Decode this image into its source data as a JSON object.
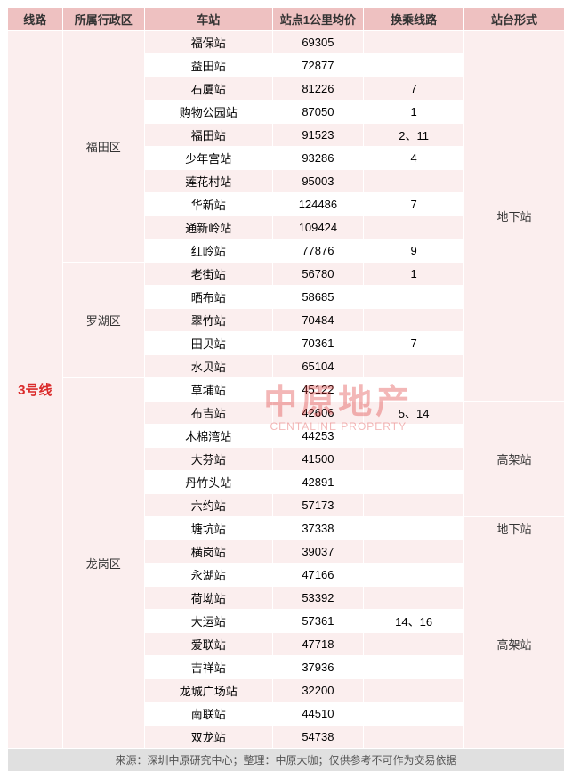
{
  "headers": {
    "line": "线路",
    "district": "所属行政区",
    "station": "车站",
    "price": "站点1公里均价",
    "transfer": "换乘线路",
    "platform": "站台形式"
  },
  "line_label": "3号线",
  "districts": [
    {
      "name": "福田区",
      "rows": 10
    },
    {
      "name": "罗湖区",
      "rows": 5
    },
    {
      "name": "龙岗区",
      "rows": 16
    }
  ],
  "platforms": [
    {
      "name": "地下站",
      "rows": 16
    },
    {
      "name": "高架站",
      "rows": 5
    },
    {
      "name": "地下站",
      "rows": 1
    },
    {
      "name": "高架站",
      "rows": 9
    }
  ],
  "stations": [
    {
      "station": "福保站",
      "price": "69305",
      "transfer": ""
    },
    {
      "station": "益田站",
      "price": "72877",
      "transfer": ""
    },
    {
      "station": "石厦站",
      "price": "81226",
      "transfer": "7"
    },
    {
      "station": "购物公园站",
      "price": "87050",
      "transfer": "1"
    },
    {
      "station": "福田站",
      "price": "91523",
      "transfer": "2、11"
    },
    {
      "station": "少年宫站",
      "price": "93286",
      "transfer": "4"
    },
    {
      "station": "莲花村站",
      "price": "95003",
      "transfer": ""
    },
    {
      "station": "华新站",
      "price": "124486",
      "transfer": "7"
    },
    {
      "station": "通新岭站",
      "price": "109424",
      "transfer": ""
    },
    {
      "station": "红岭站",
      "price": "77876",
      "transfer": "9"
    },
    {
      "station": "老街站",
      "price": "56780",
      "transfer": "1"
    },
    {
      "station": "晒布站",
      "price": "58685",
      "transfer": ""
    },
    {
      "station": "翠竹站",
      "price": "70484",
      "transfer": ""
    },
    {
      "station": "田贝站",
      "price": "70361",
      "transfer": "7"
    },
    {
      "station": "水贝站",
      "price": "65104",
      "transfer": ""
    },
    {
      "station": "草埔站",
      "price": "45122",
      "transfer": ""
    },
    {
      "station": "布吉站",
      "price": "42606",
      "transfer": "5、14"
    },
    {
      "station": "木棉湾站",
      "price": "44253",
      "transfer": ""
    },
    {
      "station": "大芬站",
      "price": "41500",
      "transfer": ""
    },
    {
      "station": "丹竹头站",
      "price": "42891",
      "transfer": ""
    },
    {
      "station": "六约站",
      "price": "57173",
      "transfer": ""
    },
    {
      "station": "塘坑站",
      "price": "37338",
      "transfer": ""
    },
    {
      "station": "横岗站",
      "price": "39037",
      "transfer": ""
    },
    {
      "station": "永湖站",
      "price": "47166",
      "transfer": ""
    },
    {
      "station": "荷坳站",
      "price": "53392",
      "transfer": ""
    },
    {
      "station": "大运站",
      "price": "57361",
      "transfer": "14、16"
    },
    {
      "station": "爱联站",
      "price": "47718",
      "transfer": ""
    },
    {
      "station": "吉祥站",
      "price": "37936",
      "transfer": ""
    },
    {
      "station": "龙城广场站",
      "price": "32200",
      "transfer": ""
    },
    {
      "station": "南联站",
      "price": "44510",
      "transfer": ""
    },
    {
      "station": "双龙站",
      "price": "54738",
      "transfer": ""
    }
  ],
  "footer": "来源：深圳中原研究中心；整理：中原大咖；仅供参考不可作为交易依据",
  "watermark": {
    "cn": "中原地产",
    "en": "CENTALINE PROPERTY"
  },
  "colors": {
    "header_bg": "#eec1c1",
    "row_alt_bg": "#fbeeee",
    "row_plain_bg": "#ffffff",
    "line_text": "#da2a2a",
    "footer_bg": "#e0e0e0",
    "border": "#ffffff",
    "watermark": "#d33"
  }
}
